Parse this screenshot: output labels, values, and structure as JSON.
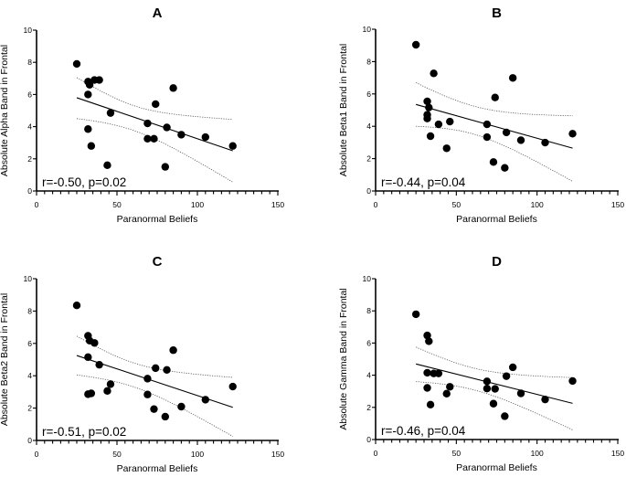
{
  "chart_data": [
    {
      "type": "scatter",
      "title": "A",
      "xlabel": "Paranormal Beliefs",
      "ylabel": "Absolute Alpha Band in Frontal",
      "xlim": [
        0,
        150
      ],
      "ylim": [
        0,
        10
      ],
      "xticks": [
        "0",
        "50",
        "100",
        "150"
      ],
      "yticks": [
        "0",
        "2",
        "4",
        "6",
        "8",
        "10"
      ],
      "annotation": "r=-0.50, p=0.02",
      "points": [
        [
          25,
          7.9
        ],
        [
          32,
          6.8
        ],
        [
          33,
          6.6
        ],
        [
          36,
          6.9
        ],
        [
          39,
          6.9
        ],
        [
          32,
          6.0
        ],
        [
          32,
          3.85
        ],
        [
          34,
          2.8
        ],
        [
          44,
          1.6
        ],
        [
          46,
          4.85
        ],
        [
          69,
          4.2
        ],
        [
          69,
          3.25
        ],
        [
          73,
          3.25
        ],
        [
          74,
          5.4
        ],
        [
          81,
          3.95
        ],
        [
          80,
          1.5
        ],
        [
          85,
          6.4
        ],
        [
          90,
          3.5
        ],
        [
          105,
          3.35
        ],
        [
          122,
          2.8
        ]
      ],
      "fit_line": {
        "x": [
          25,
          122
        ],
        "y": [
          5.8,
          2.5
        ]
      },
      "ci_95": {
        "upper": [
          7.05,
          4.45
        ],
        "lower": [
          4.5,
          0.55
        ]
      }
    },
    {
      "type": "scatter",
      "title": "B",
      "xlabel": "Paranormal Beliefs",
      "ylabel": "Absolute Beta1 Band in Frontal",
      "xlim": [
        0,
        150
      ],
      "ylim": [
        0,
        10
      ],
      "xticks": [
        "0",
        "50",
        "100",
        "150"
      ],
      "yticks": [
        "0",
        "2",
        "4",
        "6",
        "8",
        "10"
      ],
      "annotation": "r=-0.44, p=0.04",
      "points": [
        [
          25,
          9.04
        ],
        [
          36,
          7.27
        ],
        [
          32,
          5.54
        ],
        [
          33,
          5.16
        ],
        [
          32,
          4.71
        ],
        [
          32,
          4.48
        ],
        [
          34,
          3.39
        ],
        [
          39,
          4.12
        ],
        [
          46,
          4.29
        ],
        [
          44,
          2.64
        ],
        [
          69,
          4.12
        ],
        [
          69,
          3.33
        ],
        [
          73,
          1.79
        ],
        [
          74,
          5.78
        ],
        [
          81,
          3.62
        ],
        [
          80,
          1.43
        ],
        [
          85,
          6.99
        ],
        [
          90,
          3.14
        ],
        [
          105,
          2.99
        ],
        [
          122,
          3.54
        ]
      ],
      "fit_line": {
        "x": [
          25,
          122
        ],
        "y": [
          5.35,
          2.65
        ]
      },
      "ci_95": {
        "upper": [
          6.7,
          4.65
        ],
        "lower": [
          4.0,
          0.6
        ]
      }
    },
    {
      "type": "scatter",
      "title": "C",
      "xlabel": "Paranormal Beliefs",
      "ylabel": "Absolute Beta2 Band in Frontal",
      "xlim": [
        0,
        150
      ],
      "ylim": [
        0,
        10
      ],
      "xticks": [
        "0",
        "50",
        "100",
        "150"
      ],
      "yticks": [
        "0",
        "2",
        "4",
        "6",
        "8",
        "10"
      ],
      "annotation": "r=-0.51, p=0.02",
      "points": [
        [
          25,
          8.35
        ],
        [
          32,
          6.47
        ],
        [
          33,
          6.17
        ],
        [
          36,
          6.03
        ],
        [
          32,
          5.15
        ],
        [
          39,
          4.68
        ],
        [
          46,
          3.48
        ],
        [
          44,
          3.06
        ],
        [
          32,
          2.86
        ],
        [
          34,
          2.91
        ],
        [
          69,
          3.82
        ],
        [
          69,
          2.84
        ],
        [
          73,
          1.94
        ],
        [
          74,
          4.47
        ],
        [
          81,
          4.36
        ],
        [
          80,
          1.47
        ],
        [
          85,
          5.58
        ],
        [
          90,
          2.09
        ],
        [
          105,
          2.52
        ],
        [
          122,
          3.33
        ]
      ],
      "fit_line": {
        "x": [
          25,
          122
        ],
        "y": [
          5.25,
          2.05
        ]
      },
      "ci_95": {
        "upper": [
          6.45,
          3.9
        ],
        "lower": [
          4.05,
          0.25
        ]
      }
    },
    {
      "type": "scatter",
      "title": "D",
      "xlabel": "Paranormal Beliefs",
      "ylabel": "Absolute Gamma Band in Frontal",
      "xlim": [
        0,
        150
      ],
      "ylim": [
        0,
        10
      ],
      "xticks": [
        "0",
        "50",
        "100",
        "150"
      ],
      "yticks": [
        "0",
        "2",
        "4",
        "6",
        "8",
        "10"
      ],
      "annotation": "r=-0.46, p=0.04",
      "points": [
        [
          25,
          7.79
        ],
        [
          32,
          6.47
        ],
        [
          33,
          6.11
        ],
        [
          32,
          4.15
        ],
        [
          36,
          4.11
        ],
        [
          39,
          4.11
        ],
        [
          32,
          3.21
        ],
        [
          34,
          2.17
        ],
        [
          46,
          3.28
        ],
        [
          44,
          2.85
        ],
        [
          69,
          3.62
        ],
        [
          69,
          3.17
        ],
        [
          73,
          2.23
        ],
        [
          74,
          3.15
        ],
        [
          81,
          3.94
        ],
        [
          80,
          1.45
        ],
        [
          85,
          4.49
        ],
        [
          90,
          2.87
        ],
        [
          105,
          2.49
        ],
        [
          122,
          3.64
        ]
      ],
      "fit_line": {
        "x": [
          25,
          122
        ],
        "y": [
          4.7,
          2.25
        ]
      },
      "ci_95": {
        "upper": [
          5.75,
          3.85
        ],
        "lower": [
          3.6,
          0.6
        ]
      }
    }
  ]
}
